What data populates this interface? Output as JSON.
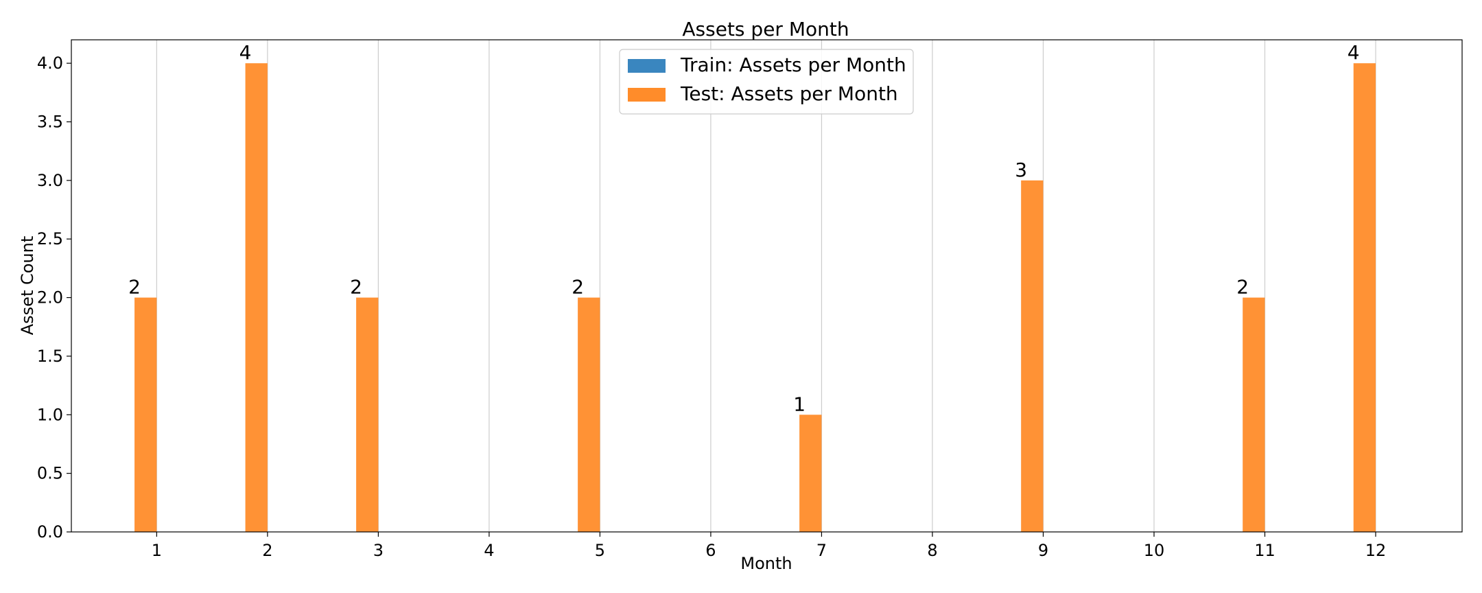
{
  "chart_data": {
    "type": "bar",
    "title": "Assets per Month",
    "xlabel": "Month",
    "ylabel": "Asset Count",
    "x_ticks": [
      "1",
      "2",
      "3",
      "4",
      "5",
      "6",
      "7",
      "8",
      "9",
      "10",
      "11",
      "12"
    ],
    "y_ticks": [
      "0.0",
      "0.5",
      "1.0",
      "1.5",
      "2.0",
      "2.5",
      "3.0",
      "3.5",
      "4.0"
    ],
    "ylim": [
      0,
      4.2
    ],
    "xlim": [
      0.23,
      12.78
    ],
    "grid": "vertical",
    "legend_position": "top-center",
    "series": [
      {
        "name": "Train: Assets per Month",
        "color": "#3a86bf",
        "x": [],
        "values": []
      },
      {
        "name": "Test: Assets per Month",
        "color": "#ff8c2a",
        "x": [
          1,
          2,
          3,
          5,
          7,
          9,
          11,
          12
        ],
        "values": [
          2,
          4,
          2,
          2,
          1,
          3,
          2,
          4
        ]
      }
    ],
    "data_labels": [
      "2",
      "4",
      "2",
      "2",
      "1",
      "3",
      "2",
      "4"
    ]
  }
}
